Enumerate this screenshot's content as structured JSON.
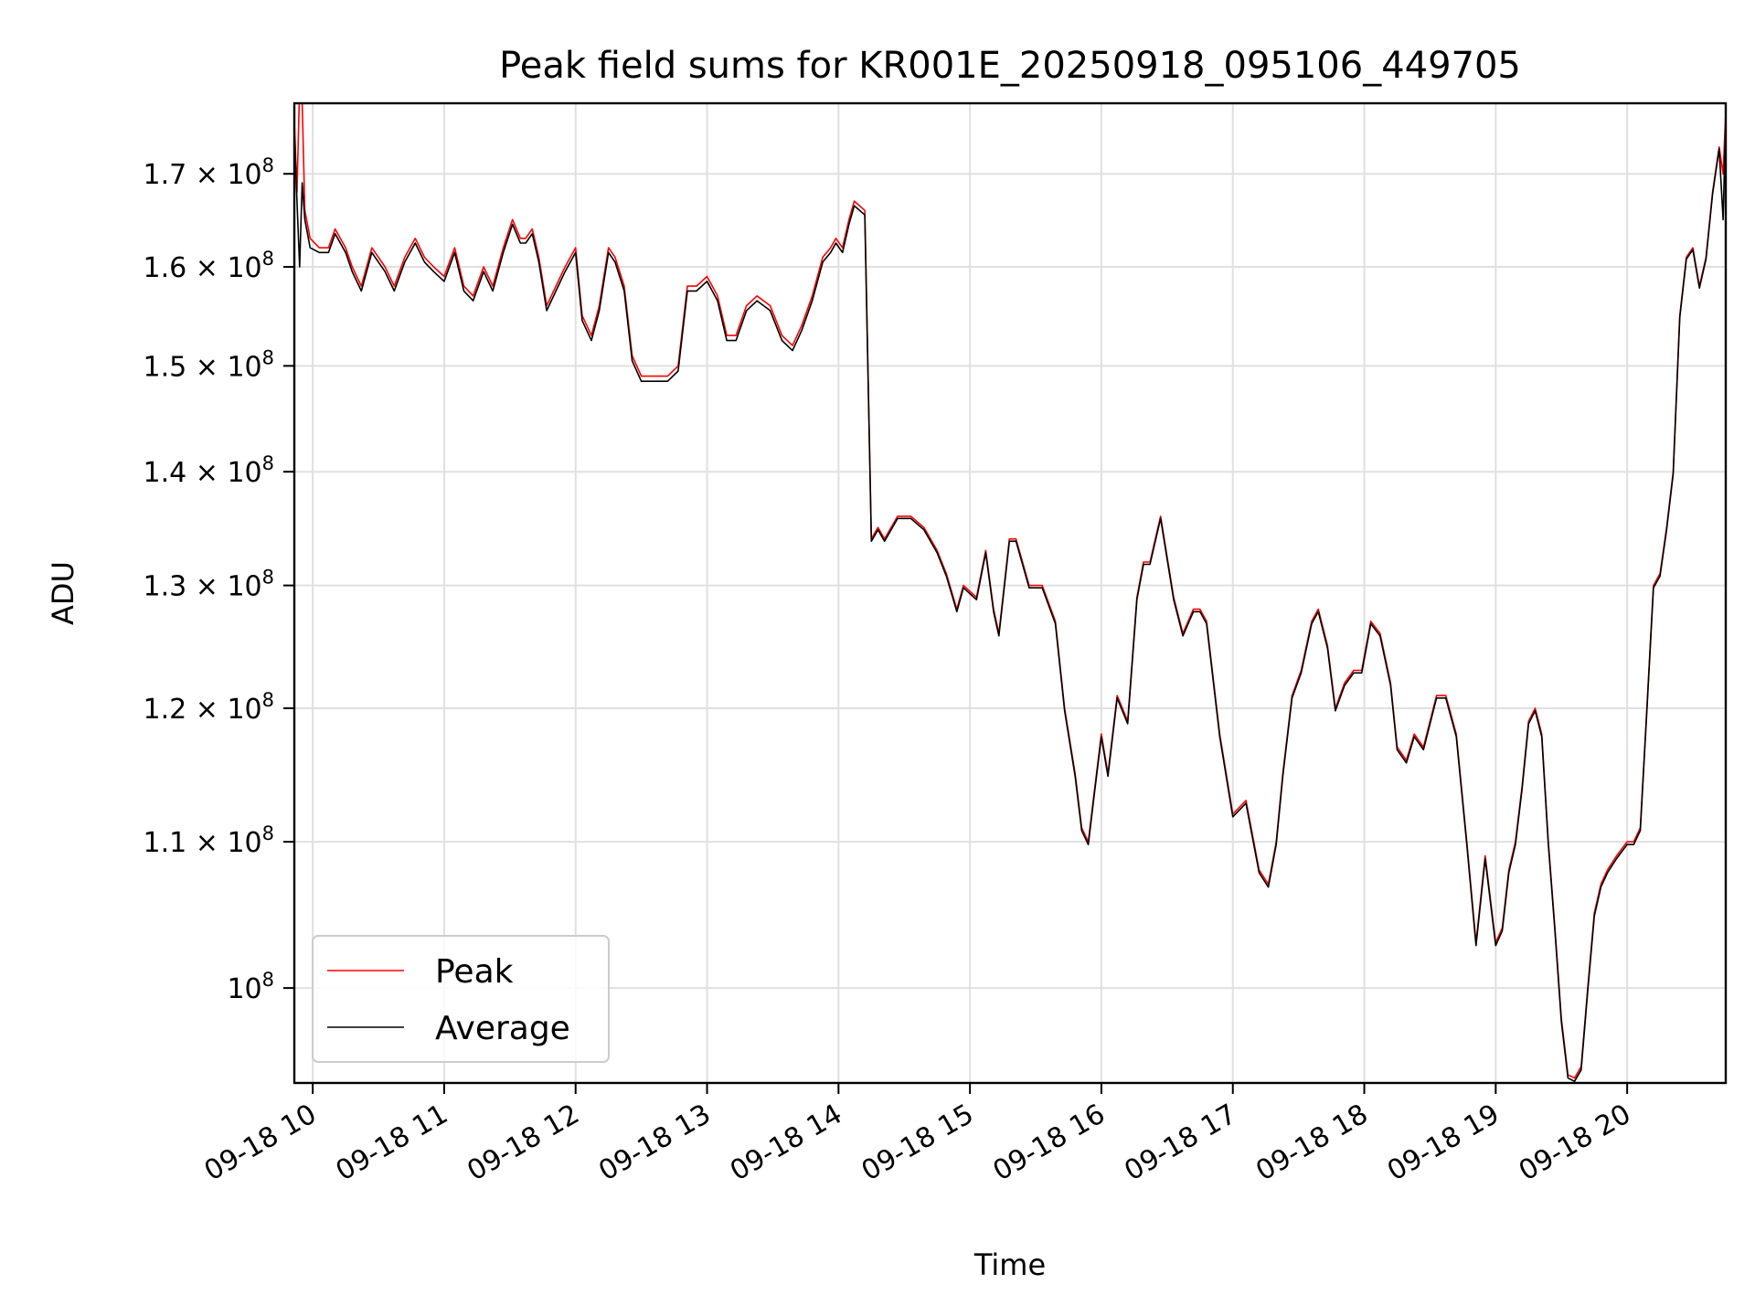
{
  "chart_data": {
    "type": "line",
    "title": "Peak field sums for KR001E_20250918_095106_449705",
    "xlabel": "Time",
    "ylabel": "ADU",
    "y_scale": "log",
    "grid": true,
    "legend_placement": "lower-left",
    "x_unit": "hour of 2025-09-18",
    "xlim": [
      9.86,
      20.75
    ],
    "ylim": [
      94000000.0,
      178000000.0
    ],
    "x_ticks": [
      {
        "value": 10,
        "label": "09-18 10"
      },
      {
        "value": 11,
        "label": "09-18 11"
      },
      {
        "value": 12,
        "label": "09-18 12"
      },
      {
        "value": 13,
        "label": "09-18 13"
      },
      {
        "value": 14,
        "label": "09-18 14"
      },
      {
        "value": 15,
        "label": "09-18 15"
      },
      {
        "value": 16,
        "label": "09-18 16"
      },
      {
        "value": 17,
        "label": "09-18 17"
      },
      {
        "value": 18,
        "label": "09-18 18"
      },
      {
        "value": 19,
        "label": "09-18 19"
      },
      {
        "value": 20,
        "label": "09-18 20"
      }
    ],
    "y_ticks": [
      {
        "value": 100000000,
        "mantissa": "",
        "exponent": "8"
      },
      {
        "value": 110000000,
        "mantissa": "1.1",
        "exponent": "8"
      },
      {
        "value": 120000000,
        "mantissa": "1.2",
        "exponent": "8"
      },
      {
        "value": 130000000,
        "mantissa": "1.3",
        "exponent": "8"
      },
      {
        "value": 140000000,
        "mantissa": "1.4",
        "exponent": "8"
      },
      {
        "value": 150000000,
        "mantissa": "1.5",
        "exponent": "8"
      },
      {
        "value": 160000000,
        "mantissa": "1.6",
        "exponent": "8"
      },
      {
        "value": 170000000,
        "mantissa": "1.7",
        "exponent": "8"
      }
    ],
    "y_tick_multiplier": "× 10",
    "y_tick_base_label": "10",
    "series": [
      {
        "name": "Peak",
        "color": "#ff0000",
        "x": [
          9.86,
          9.88,
          9.9,
          9.92,
          9.94,
          9.98,
          10.05,
          10.12,
          10.17,
          10.25,
          10.3,
          10.37,
          10.45,
          10.55,
          10.62,
          10.7,
          10.78,
          10.85,
          10.92,
          11.0,
          11.08,
          11.15,
          11.22,
          11.3,
          11.37,
          11.45,
          11.52,
          11.58,
          11.62,
          11.67,
          11.72,
          11.78,
          11.85,
          11.92,
          12.0,
          12.05,
          12.12,
          12.18,
          12.25,
          12.3,
          12.37,
          12.43,
          12.5,
          12.6,
          12.7,
          12.78,
          12.85,
          12.92,
          13.0,
          13.08,
          13.15,
          13.22,
          13.3,
          13.38,
          13.48,
          13.57,
          13.65,
          13.72,
          13.8,
          13.88,
          13.94,
          13.98,
          14.03,
          14.08,
          14.12,
          14.2,
          14.25,
          14.3,
          14.35,
          14.45,
          14.55,
          14.65,
          14.75,
          14.82,
          14.9,
          14.95,
          15.05,
          15.12,
          15.18,
          15.22,
          15.3,
          15.35,
          15.45,
          15.55,
          15.65,
          15.72,
          15.8,
          15.85,
          15.9,
          15.95,
          16.0,
          16.05,
          16.12,
          16.2,
          16.27,
          16.32,
          16.37,
          16.45,
          16.55,
          16.62,
          16.7,
          16.75,
          16.8,
          16.9,
          17.0,
          17.1,
          17.2,
          17.27,
          17.33,
          17.38,
          17.45,
          17.52,
          17.6,
          17.65,
          17.72,
          17.78,
          17.85,
          17.92,
          17.98,
          18.05,
          18.12,
          18.2,
          18.25,
          18.32,
          18.38,
          18.45,
          18.55,
          18.62,
          18.7,
          18.78,
          18.85,
          18.92,
          19.0,
          19.05,
          19.1,
          19.15,
          19.2,
          19.25,
          19.3,
          19.35,
          19.4,
          19.45,
          19.5,
          19.55,
          19.6,
          19.65,
          19.7,
          19.75,
          19.8,
          19.85,
          19.92,
          20.0,
          20.05,
          20.1,
          20.15,
          20.2,
          20.25,
          20.3,
          20.35,
          20.4,
          20.45,
          20.5,
          20.55,
          20.6,
          20.65,
          20.7,
          20.73,
          20.75
        ],
        "y": [
          176000000,
          168000000,
          180000000,
          178000000,
          166000000,
          163000000,
          162000000,
          162000000,
          164000000,
          162000000,
          160000000,
          158000000,
          162000000,
          160000000,
          158000000,
          161000000,
          163000000,
          161000000,
          160000000,
          159000000,
          162000000,
          158000000,
          157000000,
          160000000,
          158000000,
          162000000,
          165000000,
          163000000,
          163000000,
          164000000,
          161000000,
          156000000,
          158000000,
          160000000,
          162000000,
          155000000,
          153000000,
          156000000,
          162000000,
          161000000,
          158000000,
          151000000,
          149000000,
          149000000,
          149000000,
          150000000,
          158000000,
          158000000,
          159000000,
          157000000,
          153000000,
          153000000,
          156000000,
          157000000,
          156000000,
          153000000,
          152000000,
          154000000,
          157000000,
          161000000,
          162000000,
          163000000,
          162000000,
          165000000,
          167000000,
          166000000,
          134000000,
          135000000,
          134000000,
          136000000,
          136000000,
          135000000,
          133000000,
          131000000,
          128000000,
          130000000,
          129000000,
          133000000,
          128000000,
          126000000,
          134000000,
          134000000,
          130000000,
          130000000,
          127000000,
          120000000,
          115000000,
          111000000,
          110000000,
          114000000,
          118000000,
          115000000,
          121000000,
          119000000,
          129000000,
          132000000,
          132000000,
          136000000,
          129000000,
          126000000,
          128000000,
          128000000,
          127000000,
          118000000,
          112000000,
          113000000,
          108000000,
          107000000,
          110000000,
          115000000,
          121000000,
          123000000,
          127000000,
          128000000,
          125000000,
          120000000,
          122000000,
          123000000,
          123000000,
          127000000,
          126000000,
          122000000,
          117000000,
          116000000,
          118000000,
          117000000,
          121000000,
          121000000,
          118000000,
          110000000,
          103000000,
          109000000,
          103000000,
          104000000,
          108000000,
          110000000,
          114000000,
          119000000,
          120000000,
          118000000,
          110000000,
          104000000,
          98000000,
          94500000,
          94300000,
          95000000,
          100000000,
          105000000,
          107000000,
          108000000,
          109000000,
          110000000,
          110000000,
          111000000,
          120000000,
          130000000,
          131000000,
          135000000,
          140000000,
          155000000,
          161000000,
          162000000,
          158000000,
          161000000,
          168000000,
          173000000,
          170000000,
          177000000
        ]
      },
      {
        "name": "Average",
        "color": "#000000",
        "x": [
          9.86,
          9.88,
          9.9,
          9.92,
          9.94,
          9.98,
          10.05,
          10.12,
          10.17,
          10.25,
          10.3,
          10.37,
          10.45,
          10.55,
          10.62,
          10.7,
          10.78,
          10.85,
          10.92,
          11.0,
          11.08,
          11.15,
          11.22,
          11.3,
          11.37,
          11.45,
          11.52,
          11.58,
          11.62,
          11.67,
          11.72,
          11.78,
          11.85,
          11.92,
          12.0,
          12.05,
          12.12,
          12.18,
          12.25,
          12.3,
          12.37,
          12.43,
          12.5,
          12.6,
          12.7,
          12.78,
          12.85,
          12.92,
          13.0,
          13.08,
          13.15,
          13.22,
          13.3,
          13.38,
          13.48,
          13.57,
          13.65,
          13.72,
          13.8,
          13.88,
          13.94,
          13.98,
          14.03,
          14.08,
          14.12,
          14.2,
          14.25,
          14.3,
          14.35,
          14.45,
          14.55,
          14.65,
          14.75,
          14.82,
          14.9,
          14.95,
          15.05,
          15.12,
          15.18,
          15.22,
          15.3,
          15.35,
          15.45,
          15.55,
          15.65,
          15.72,
          15.8,
          15.85,
          15.9,
          15.95,
          16.0,
          16.05,
          16.12,
          16.2,
          16.27,
          16.32,
          16.37,
          16.45,
          16.55,
          16.62,
          16.7,
          16.75,
          16.8,
          16.9,
          17.0,
          17.1,
          17.2,
          17.27,
          17.33,
          17.38,
          17.45,
          17.52,
          17.6,
          17.65,
          17.72,
          17.78,
          17.85,
          17.92,
          17.98,
          18.05,
          18.12,
          18.2,
          18.25,
          18.32,
          18.38,
          18.45,
          18.55,
          18.62,
          18.7,
          18.78,
          18.85,
          18.92,
          19.0,
          19.05,
          19.1,
          19.15,
          19.2,
          19.25,
          19.3,
          19.35,
          19.4,
          19.45,
          19.5,
          19.55,
          19.6,
          19.65,
          19.7,
          19.75,
          19.8,
          19.85,
          19.92,
          20.0,
          20.05,
          20.1,
          20.15,
          20.2,
          20.25,
          20.3,
          20.35,
          20.4,
          20.45,
          20.5,
          20.55,
          20.6,
          20.65,
          20.7,
          20.73,
          20.75
        ],
        "y": [
          175000000,
          167000000,
          160000000,
          169000000,
          165000000,
          162000000,
          161500000,
          161500000,
          163500000,
          161500000,
          159500000,
          157500000,
          161500000,
          159500000,
          157500000,
          160500000,
          162500000,
          160500000,
          159500000,
          158500000,
          161500000,
          157500000,
          156500000,
          159500000,
          157500000,
          161500000,
          164500000,
          162500000,
          162500000,
          163500000,
          160500000,
          155500000,
          157500000,
          159500000,
          161500000,
          154500000,
          152500000,
          155500000,
          161500000,
          160500000,
          157500000,
          150500000,
          148500000,
          148500000,
          148500000,
          149500000,
          157500000,
          157500000,
          158500000,
          156500000,
          152500000,
          152500000,
          155500000,
          156500000,
          155500000,
          152500000,
          151500000,
          153500000,
          156500000,
          160500000,
          161500000,
          162500000,
          161500000,
          164500000,
          166500000,
          165500000,
          133800000,
          134800000,
          133800000,
          135800000,
          135800000,
          134800000,
          132800000,
          130800000,
          127800000,
          129800000,
          128800000,
          132800000,
          127800000,
          125800000,
          133800000,
          133800000,
          129800000,
          129800000,
          126800000,
          119800000,
          114800000,
          110800000,
          109800000,
          113800000,
          117800000,
          114800000,
          120800000,
          118800000,
          128800000,
          131800000,
          131800000,
          135800000,
          128800000,
          125800000,
          127800000,
          127800000,
          126800000,
          117800000,
          111800000,
          112800000,
          107800000,
          106800000,
          109800000,
          114800000,
          120800000,
          122800000,
          126800000,
          127800000,
          124800000,
          119800000,
          121800000,
          122800000,
          122800000,
          126800000,
          125800000,
          121800000,
          116800000,
          115800000,
          117800000,
          116800000,
          120800000,
          120800000,
          117800000,
          109800000,
          102800000,
          108800000,
          102800000,
          103800000,
          107800000,
          109800000,
          113800000,
          118800000,
          119800000,
          117800000,
          109800000,
          103800000,
          97800000,
          94300000,
          94100000,
          94800000,
          99800000,
          104800000,
          106800000,
          107800000,
          108800000,
          109800000,
          109800000,
          110800000,
          119800000,
          129800000,
          130800000,
          134800000,
          139800000,
          154800000,
          160800000,
          161800000,
          157800000,
          160800000,
          167800000,
          172800000,
          165000000,
          176500000
        ]
      }
    ]
  }
}
